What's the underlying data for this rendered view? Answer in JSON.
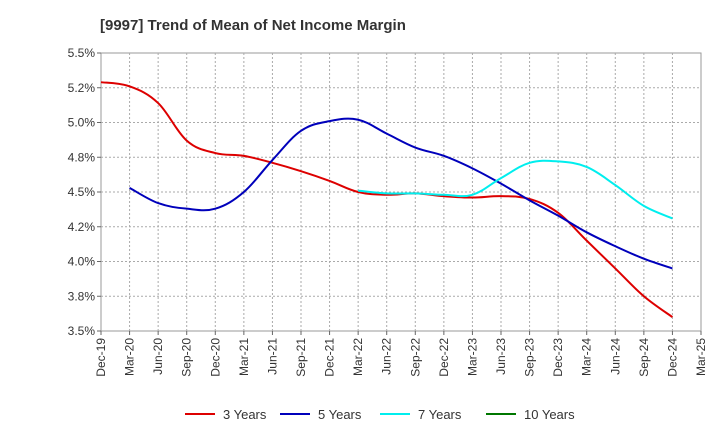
{
  "chart_data": {
    "type": "line",
    "title": "[9997]  Trend of Mean of Net Income Margin",
    "xlabel": "",
    "ylabel": "",
    "ylim": [
      3.5,
      5.5
    ],
    "y_ticks": [
      3.5,
      3.75,
      4.0,
      4.25,
      4.5,
      4.75,
      5.0,
      5.25,
      5.5
    ],
    "y_tick_labels": [
      "3.5%",
      "3.8%",
      "4.0%",
      "4.2%",
      "4.5%",
      "4.8%",
      "5.0%",
      "5.2%",
      "5.5%"
    ],
    "categories": [
      "Dec-19",
      "Mar-20",
      "Jun-20",
      "Sep-20",
      "Dec-20",
      "Mar-21",
      "Jun-21",
      "Sep-21",
      "Dec-21",
      "Mar-22",
      "Jun-22",
      "Sep-22",
      "Dec-22",
      "Mar-23",
      "Jun-23",
      "Sep-23",
      "Dec-23",
      "Mar-24",
      "Jun-24",
      "Sep-24",
      "Dec-24",
      "Mar-25"
    ],
    "grid": true,
    "legend_position": "bottom",
    "series": [
      {
        "name": "3 Years",
        "color": "#dd0000",
        "values": [
          5.29,
          5.26,
          5.14,
          4.87,
          4.78,
          4.76,
          4.71,
          4.65,
          4.58,
          4.5,
          4.48,
          4.49,
          4.47,
          4.46,
          4.47,
          4.45,
          4.35,
          4.15,
          3.95,
          3.75,
          3.6,
          null
        ]
      },
      {
        "name": "5 Years",
        "color": "#0000bb",
        "values": [
          null,
          4.53,
          4.42,
          4.38,
          4.38,
          4.5,
          4.73,
          4.94,
          5.01,
          5.02,
          4.92,
          4.82,
          4.76,
          4.67,
          4.56,
          4.44,
          4.33,
          4.21,
          4.11,
          4.02,
          3.95,
          null
        ]
      },
      {
        "name": "7 Years",
        "color": "#00eeee",
        "values": [
          null,
          null,
          null,
          null,
          null,
          null,
          null,
          null,
          null,
          4.51,
          4.49,
          4.49,
          4.48,
          4.48,
          4.6,
          4.71,
          4.72,
          4.68,
          4.55,
          4.4,
          4.31,
          null
        ]
      },
      {
        "name": "10 Years",
        "color": "#007700",
        "values": [
          null,
          null,
          null,
          null,
          null,
          null,
          null,
          null,
          null,
          null,
          null,
          null,
          null,
          null,
          null,
          null,
          null,
          null,
          null,
          null,
          null,
          null
        ]
      }
    ]
  }
}
